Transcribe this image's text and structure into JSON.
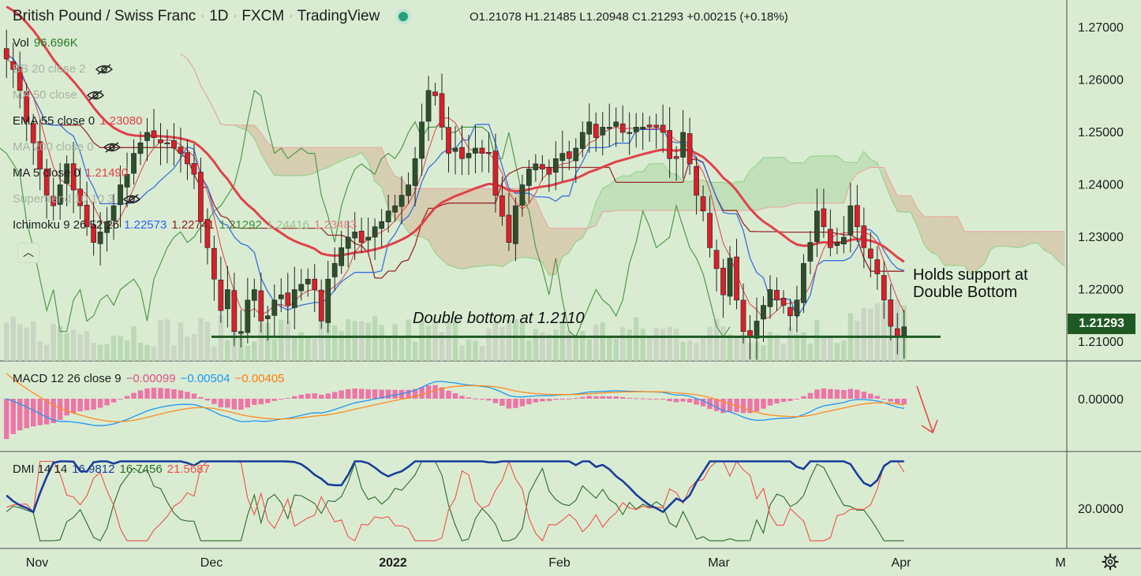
{
  "header": {
    "title_parts": [
      "British Pound / Swiss Franc",
      "1D",
      "FXCM",
      "TradingView"
    ],
    "ohlc": {
      "open": "O1.21078",
      "high": "H1.21485",
      "low": "L1.20948",
      "close": "C1.21293",
      "change": "+0.00215 (+0.18%)"
    }
  },
  "legends": {
    "vol": {
      "name": "Vol",
      "value": "96.696K"
    },
    "bb": {
      "name": "BB 20 close 2"
    },
    "ma50": {
      "name": "MA 50 close"
    },
    "ema55": {
      "name": "EMA 55 close 0",
      "value": "1.23080"
    },
    "ma200": {
      "name": "MA 200 close 0"
    },
    "ma5": {
      "name": "MA 5 close 0",
      "value": "1.21490"
    },
    "supertrend": {
      "name": "Supertrend 10 10 3"
    },
    "ichimoku": {
      "name": "Ichimoku 9 26 52 26",
      "v1": "1.22573",
      "v2": "1.22741",
      "v3": "1.21292",
      "v4": "1.24416",
      "v5": "1.23483"
    },
    "macd": {
      "name": "MACD 12 26 close 9",
      "v1": "−0.00099",
      "v2": "−0.00504",
      "v3": "−0.00405"
    },
    "dmi": {
      "name": "DMI 14 14",
      "v1": "16.9812",
      "v2": "16.7456",
      "v3": "21.5687"
    }
  },
  "annotations": {
    "double_bottom": "Double bottom at 1.2110",
    "holds_support_1": "Holds support at",
    "holds_support_2": "Double Bottom"
  },
  "price_tag": "1.21293",
  "colors": {
    "background": "#d9ecd2",
    "up_candle": "#2e4f2c",
    "down_candle": "#d8202a",
    "ema55": "#e0414a",
    "ma5": "#e0414a",
    "tenkan": "#3a6fe0",
    "kijun": "#9b2a2a",
    "chikou": "#4f9a4a",
    "kumo_bear": "#d4c4a4",
    "kumo_bull": "#b8dcb0",
    "support_line": "#1f5a24",
    "macd_line": "#2196f3",
    "signal_line": "#ff8a1f",
    "histogram": "#f060a0",
    "adx": "#1a3d9a",
    "di_plus": "#2e6a2a",
    "di_minus": "#f0504a",
    "volume": "#c8d3c2"
  },
  "chart_data": [
    {
      "type": "candlestick",
      "title": "British Pound / Swiss Franc · 1D · FXCM",
      "x_labels": [
        "Nov",
        "Dec",
        "2022",
        "Feb",
        "Mar",
        "Apr",
        "M"
      ],
      "y_ticks": [
        1.27,
        1.26,
        1.25,
        1.24,
        1.23,
        1.22,
        1.21
      ],
      "ylim": [
        1.205,
        1.27
      ],
      "close": [
        1.264,
        1.262,
        1.258,
        1.252,
        1.248,
        1.243,
        1.238,
        1.236,
        1.24,
        1.244,
        1.239,
        1.236,
        1.232,
        1.229,
        1.231,
        1.233,
        1.236,
        1.24,
        1.242,
        1.246,
        1.248,
        1.25,
        1.249,
        1.248,
        1.248,
        1.247,
        1.246,
        1.244,
        1.242,
        1.233,
        1.228,
        1.222,
        1.216,
        1.22,
        1.212,
        1.212,
        1.218,
        1.22,
        1.214,
        1.215,
        1.218,
        1.219,
        1.217,
        1.22,
        1.221,
        1.222,
        1.22,
        1.214,
        1.222,
        1.225,
        1.228,
        1.23,
        1.231,
        1.229,
        1.23,
        1.232,
        1.233,
        1.235,
        1.236,
        1.238,
        1.24,
        1.245,
        1.252,
        1.258,
        1.257,
        1.251,
        1.246,
        1.247,
        1.245,
        1.246,
        1.247,
        1.246,
        1.246,
        1.238,
        1.234,
        1.229,
        1.236,
        1.24,
        1.243,
        1.244,
        1.243,
        1.242,
        1.245,
        1.246,
        1.245,
        1.247,
        1.25,
        1.252,
        1.249,
        1.251,
        1.251,
        1.252,
        1.25,
        1.25,
        1.251,
        1.251,
        1.251,
        1.251,
        1.25,
        1.245,
        1.245,
        1.25,
        1.244,
        1.238,
        1.235,
        1.228,
        1.224,
        1.219,
        1.226,
        1.218,
        1.212,
        1.211,
        1.214,
        1.217,
        1.22,
        1.218,
        1.217,
        1.215,
        1.218,
        1.225,
        1.229,
        1.235,
        1.232,
        1.228,
        1.229,
        1.23,
        1.236,
        1.232,
        1.228,
        1.226,
        1.223,
        1.218,
        1.213,
        1.211,
        1.2129
      ],
      "events": {
        "double_bottom_level": 1.211
      }
    },
    {
      "type": "bar",
      "title": "Vol",
      "last_value": "96.696K"
    },
    {
      "type": "line",
      "title": "MACD 12 26 close 9",
      "y_ticks": [
        0.0
      ],
      "series": [
        {
          "name": "MACD",
          "last": -0.00504
        },
        {
          "name": "Signal",
          "last": -0.00405
        },
        {
          "name": "Histogram",
          "last": -0.00099
        }
      ]
    },
    {
      "type": "line",
      "title": "DMI 14 14",
      "y_ticks": [
        20.0
      ],
      "series": [
        {
          "name": "ADX",
          "last": 16.9812
        },
        {
          "name": "+DI",
          "last": 16.7456
        },
        {
          "name": "-DI",
          "last": 21.5687
        }
      ]
    }
  ],
  "axis_labels": {
    "price": [
      "1.27000",
      "1.26000",
      "1.25000",
      "1.24000",
      "1.23000",
      "1.22000",
      "1.21000"
    ],
    "macd": "0.00000",
    "dmi": "20.0000",
    "time": [
      "Nov",
      "Dec",
      "2022",
      "Feb",
      "Mar",
      "Apr",
      "M"
    ]
  }
}
